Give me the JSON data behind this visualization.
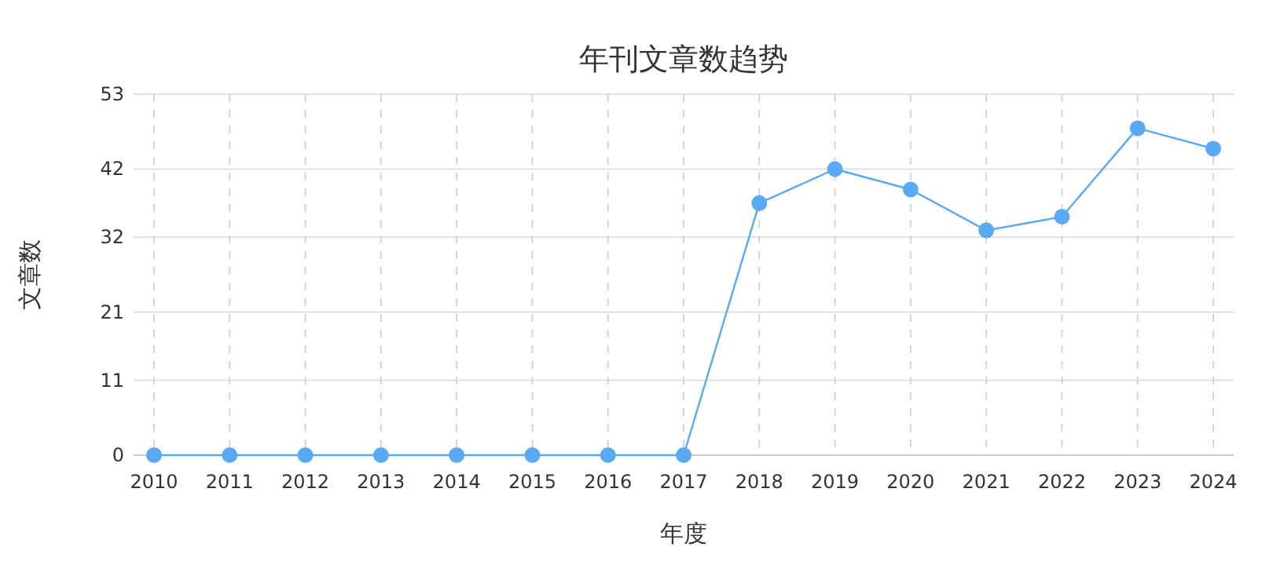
{
  "chart_data": {
    "type": "line",
    "title": "年刊文章数趋势",
    "xlabel": "年度",
    "ylabel": "文章数",
    "categories": [
      "2010",
      "2011",
      "2012",
      "2013",
      "2014",
      "2015",
      "2016",
      "2017",
      "2018",
      "2019",
      "2020",
      "2021",
      "2022",
      "2023",
      "2024"
    ],
    "series": [
      {
        "color": "#5aa9f5",
        "values": [
          0,
          0,
          0,
          0,
          0,
          0,
          0,
          0,
          37,
          42,
          39,
          33,
          35,
          48,
          45
        ]
      }
    ],
    "ylim": [
      0,
      53
    ],
    "yticks": [
      0,
      11,
      21,
      32,
      42,
      53
    ],
    "grid": true,
    "marker": "circle",
    "line_style": "solid"
  }
}
